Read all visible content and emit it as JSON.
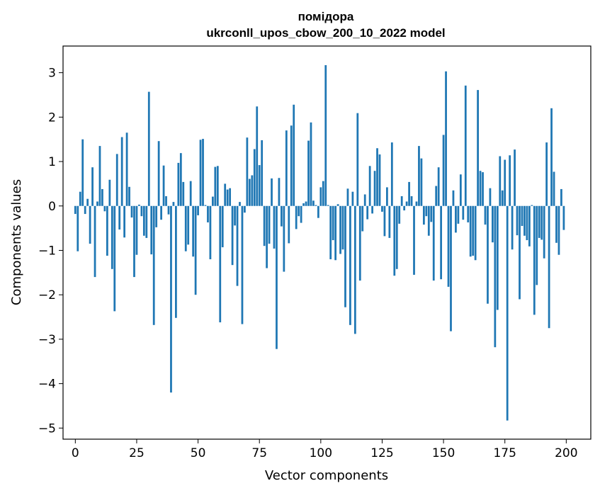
{
  "chart_data": {
    "type": "bar",
    "title": "помідора",
    "subtitle": "ukrconll_upos_cbow_200_10_2022 model",
    "xlabel": "Vector components",
    "ylabel": "Components values",
    "xlim": [
      -5,
      210
    ],
    "ylim": [
      -5.25,
      3.6
    ],
    "xticks": [
      0,
      25,
      50,
      75,
      100,
      125,
      150,
      175,
      200
    ],
    "yticks": [
      3,
      2,
      1,
      0,
      -1,
      -2,
      -3,
      -4,
      -5
    ],
    "ytick_labels": [
      "3",
      "2",
      "1",
      "0",
      "−1",
      "−2",
      "−3",
      "−4",
      "−5"
    ],
    "grid": false,
    "color": "#1f77b4",
    "x": [
      0,
      1,
      2,
      3,
      4,
      5,
      6,
      7,
      8,
      9,
      10,
      11,
      12,
      13,
      14,
      15,
      16,
      17,
      18,
      19,
      20,
      21,
      22,
      23,
      24,
      25,
      26,
      27,
      28,
      29,
      30,
      31,
      32,
      33,
      34,
      35,
      36,
      37,
      38,
      39,
      40,
      41,
      42,
      43,
      44,
      45,
      46,
      47,
      48,
      49,
      50,
      51,
      52,
      53,
      54,
      55,
      56,
      57,
      58,
      59,
      60,
      61,
      62,
      63,
      64,
      65,
      66,
      67,
      68,
      69,
      70,
      71,
      72,
      73,
      74,
      75,
      76,
      77,
      78,
      79,
      80,
      81,
      82,
      83,
      84,
      85,
      86,
      87,
      88,
      89,
      90,
      91,
      92,
      93,
      94,
      95,
      96,
      97,
      98,
      99,
      100,
      101,
      102,
      103,
      104,
      105,
      106,
      107,
      108,
      109,
      110,
      111,
      112,
      113,
      114,
      115,
      116,
      117,
      118,
      119,
      120,
      121,
      122,
      123,
      124,
      125,
      126,
      127,
      128,
      129,
      130,
      131,
      132,
      133,
      134,
      135,
      136,
      137,
      138,
      139,
      140,
      141,
      142,
      143,
      144,
      145,
      146,
      147,
      148,
      149,
      150,
      151,
      152,
      153,
      154,
      155,
      156,
      157,
      158,
      159,
      160,
      161,
      162,
      163,
      164,
      165,
      166,
      167,
      168,
      169,
      170,
      171,
      172,
      173,
      174,
      175,
      176,
      177,
      178,
      179,
      180,
      181,
      182,
      183,
      184,
      185,
      186,
      187,
      188,
      189,
      190,
      191,
      192,
      193,
      194,
      195,
      196,
      197,
      198,
      199
    ],
    "values": [
      -0.18,
      -1.02,
      0.32,
      1.5,
      -0.18,
      0.16,
      -0.85,
      0.87,
      -1.6,
      0.1,
      1.35,
      0.38,
      -0.12,
      -1.12,
      0.59,
      -1.42,
      -2.37,
      1.17,
      -0.53,
      1.55,
      -0.71,
      1.65,
      0.43,
      -0.26,
      -1.6,
      -1.1,
      0.03,
      -0.23,
      -0.67,
      -0.72,
      2.57,
      -1.09,
      -2.68,
      -0.48,
      1.46,
      -0.31,
      0.91,
      0.22,
      -0.19,
      -4.2,
      0.09,
      -2.52,
      0.97,
      1.19,
      0.54,
      -1.02,
      -0.87,
      0.56,
      -1.14,
      -2.0,
      -0.21,
      1.49,
      1.51,
      0.02,
      -0.37,
      -1.2,
      0.21,
      0.88,
      0.9,
      -2.62,
      -0.93,
      0.5,
      0.37,
      0.4,
      -1.33,
      -0.44,
      -1.8,
      0.09,
      -2.66,
      -0.15,
      1.54,
      0.61,
      0.69,
      1.28,
      2.24,
      0.92,
      1.48,
      -0.9,
      -1.4,
      -0.85,
      0.62,
      -0.96,
      -3.22,
      0.63,
      -0.46,
      -1.48,
      1.7,
      -0.84,
      1.81,
      2.28,
      -0.52,
      -0.23,
      -0.38,
      0.06,
      0.1,
      1.47,
      1.88,
      0.12,
      0.02,
      -0.27,
      0.42,
      0.56,
      3.17,
      0.02,
      -1.2,
      -0.77,
      -1.22,
      0.04,
      -1.08,
      -0.98,
      -2.28,
      0.39,
      -2.68,
      0.32,
      -2.88,
      2.09,
      -1.68,
      -0.57,
      0.26,
      -0.3,
      0.9,
      -0.17,
      0.79,
      1.3,
      1.16,
      -0.13,
      -0.68,
      0.42,
      -0.72,
      1.43,
      -1.57,
      -1.42,
      -0.4,
      0.22,
      -0.1,
      0.1,
      0.54,
      0.22,
      -1.55,
      0.1,
      1.35,
      1.07,
      -0.42,
      -0.23,
      -0.67,
      -0.36,
      -1.68,
      0.45,
      0.87,
      -1.65,
      1.6,
      3.03,
      -1.82,
      -2.82,
      0.35,
      -0.6,
      -0.4,
      0.71,
      -0.31,
      2.71,
      -0.37,
      -1.14,
      -1.12,
      -1.22,
      2.61,
      0.79,
      0.76,
      -0.42,
      -2.2,
      0.4,
      -0.82,
      -3.18,
      -2.34,
      1.12,
      0.35,
      1.04,
      -4.83,
      1.14,
      -0.98,
      1.27,
      -0.66,
      -2.1,
      -0.45,
      -0.67,
      -0.77,
      -0.91,
      0.02,
      -2.45,
      -1.78,
      -0.72,
      -0.76,
      -1.18,
      1.43,
      -2.75,
      2.2,
      0.77,
      -0.83,
      -1.1,
      0.38,
      -0.54
    ]
  }
}
